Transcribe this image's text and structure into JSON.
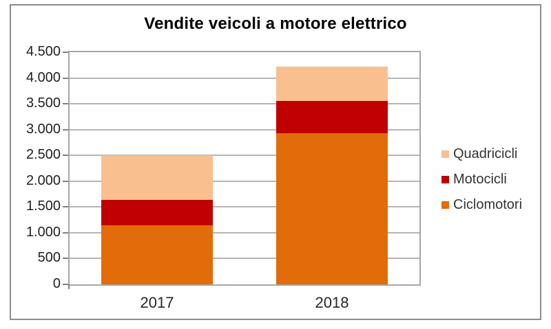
{
  "frame": {
    "background": "#ffffff",
    "border_color": "#8c8c8c"
  },
  "chart_data": {
    "type": "bar",
    "stacked": true,
    "title": "Vendite veicoli a motore elettrico",
    "categories": [
      "2017",
      "2018"
    ],
    "series": [
      {
        "name": "Ciclomotori",
        "color": "#E36C0A",
        "values": [
          1140,
          2930
        ]
      },
      {
        "name": "Motocicli",
        "color": "#C00000",
        "values": [
          500,
          625
        ]
      },
      {
        "name": "Quadricicli",
        "color": "#FABF8F",
        "values": [
          860,
          670
        ]
      }
    ],
    "stack_totals": [
      2500,
      4225
    ],
    "ylim": [
      0,
      4500
    ],
    "ytick_step": 500,
    "ytick_labels": [
      "0",
      "500",
      "1.000",
      "1.500",
      "2.000",
      "2.500",
      "3.000",
      "3.500",
      "4.000",
      "4.500"
    ],
    "xlabel": "",
    "ylabel": "",
    "grid": "horizontal",
    "legend": {
      "position": "right",
      "entries": [
        "Quadricicli",
        "Motocicli",
        "Ciclomotori"
      ]
    },
    "colors": {
      "gridline": "#b4b4b4",
      "plot_border": "#a6a6a6",
      "tick": "#808080",
      "axis_text": "#1f1f1f",
      "title_text": "#000000"
    }
  }
}
